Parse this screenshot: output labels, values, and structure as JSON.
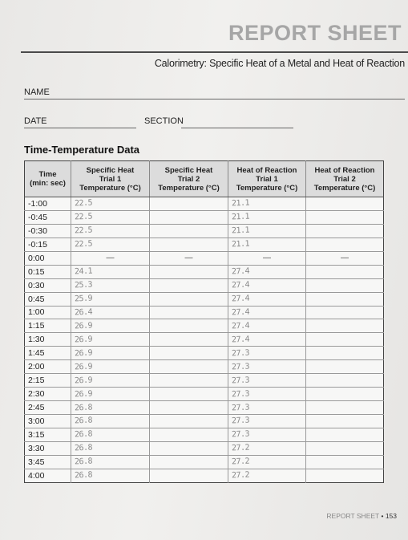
{
  "header": {
    "title": "REPORT SHEET",
    "subtitle": "Calorimetry: Specific Heat of a Metal and Heat of Reaction"
  },
  "fields": {
    "name_label": "NAME",
    "date_label": "DATE",
    "section_label": "SECTION"
  },
  "section_heading": "Time-Temperature Data",
  "table": {
    "headers": {
      "time": {
        "line1": "Time",
        "line2": "(min: sec)"
      },
      "sh1": {
        "line1": "Specific Heat",
        "line2": "Trial 1",
        "line3": "Temperature (°C)"
      },
      "sh2": {
        "line1": "Specific Heat",
        "line2": "Trial 2",
        "line3": "Temperature (°C)"
      },
      "hr1": {
        "line1": "Heat of Reaction",
        "line2": "Trial 1",
        "line3": "Temperature (°C)"
      },
      "hr2": {
        "line1": "Heat of Reaction",
        "line2": "Trial 2",
        "line3": "Temperature (°C)"
      }
    },
    "rows": [
      {
        "time": "-1:00",
        "sh1": "22.5",
        "sh2": "",
        "hr1": "21.1",
        "hr2": ""
      },
      {
        "time": "-0:45",
        "sh1": "22.5",
        "sh2": "",
        "hr1": "21.1",
        "hr2": ""
      },
      {
        "time": "-0:30",
        "sh1": "22.5",
        "sh2": "",
        "hr1": "21.1",
        "hr2": ""
      },
      {
        "time": "-0:15",
        "sh1": "22.5",
        "sh2": "",
        "hr1": "21.1",
        "hr2": ""
      },
      {
        "time": "0:00",
        "sh1": "—",
        "sh2": "—",
        "hr1": "—",
        "hr2": "—"
      },
      {
        "time": "0:15",
        "sh1": "24.1",
        "sh2": "",
        "hr1": "27.4",
        "hr2": ""
      },
      {
        "time": "0:30",
        "sh1": "25.3",
        "sh2": "",
        "hr1": "27.4",
        "hr2": ""
      },
      {
        "time": "0:45",
        "sh1": "25.9",
        "sh2": "",
        "hr1": "27.4",
        "hr2": ""
      },
      {
        "time": "1:00",
        "sh1": "26.4",
        "sh2": "",
        "hr1": "27.4",
        "hr2": ""
      },
      {
        "time": "1:15",
        "sh1": "26.9",
        "sh2": "",
        "hr1": "27.4",
        "hr2": ""
      },
      {
        "time": "1:30",
        "sh1": "26.9",
        "sh2": "",
        "hr1": "27.4",
        "hr2": ""
      },
      {
        "time": "1:45",
        "sh1": "26.9",
        "sh2": "",
        "hr1": "27.3",
        "hr2": ""
      },
      {
        "time": "2:00",
        "sh1": "26.9",
        "sh2": "",
        "hr1": "27.3",
        "hr2": ""
      },
      {
        "time": "2:15",
        "sh1": "26.9",
        "sh2": "",
        "hr1": "27.3",
        "hr2": ""
      },
      {
        "time": "2:30",
        "sh1": "26.9",
        "sh2": "",
        "hr1": "27.3",
        "hr2": ""
      },
      {
        "time": "2:45",
        "sh1": "26.8",
        "sh2": "",
        "hr1": "27.3",
        "hr2": ""
      },
      {
        "time": "3:00",
        "sh1": "26.8",
        "sh2": "",
        "hr1": "27.3",
        "hr2": ""
      },
      {
        "time": "3:15",
        "sh1": "26.8",
        "sh2": "",
        "hr1": "27.3",
        "hr2": ""
      },
      {
        "time": "3:30",
        "sh1": "26.8",
        "sh2": "",
        "hr1": "27.2",
        "hr2": ""
      },
      {
        "time": "3:45",
        "sh1": "26.8",
        "sh2": "",
        "hr1": "27.2",
        "hr2": ""
      },
      {
        "time": "4:00",
        "sh1": "26.8",
        "sh2": "",
        "hr1": "27.2",
        "hr2": ""
      }
    ]
  },
  "footer": {
    "label": "REPORT SHEET",
    "separator": "•",
    "page": "153"
  }
}
